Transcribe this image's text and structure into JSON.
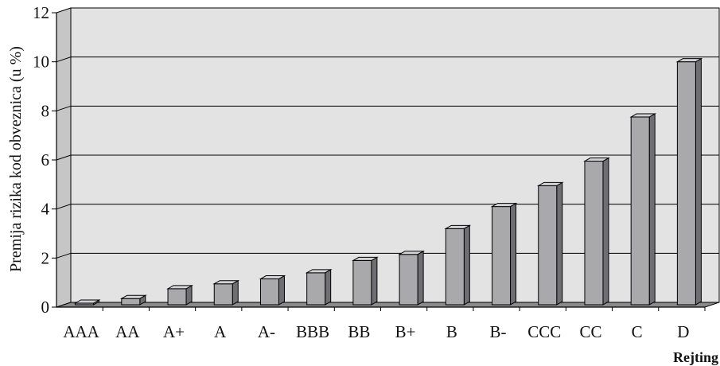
{
  "chart_data": {
    "type": "bar",
    "categories": [
      "AAA",
      "AA",
      "A+",
      "A",
      "A-",
      "BBB",
      "BB",
      "B+",
      "B",
      "B-",
      "CCC",
      "CC",
      "C",
      "D"
    ],
    "values": [
      0.1,
      0.35,
      0.75,
      0.95,
      1.15,
      1.4,
      1.9,
      2.15,
      3.2,
      4.1,
      4.95,
      5.95,
      7.75,
      10.0
    ],
    "xlabel": "Rejting",
    "ylabel": "Premija rizika kod obveznica (u %)",
    "ylim": [
      0,
      12
    ],
    "yticks": [
      "0",
      "2",
      "4",
      "6",
      "8",
      "10",
      "12"
    ],
    "grid": true,
    "legend": "none"
  },
  "colors": {
    "bar_front": "#a9a9ac",
    "bar_side": "#6f6f73",
    "bar_top": "#d3d3d6",
    "wall": "#e3e3e3",
    "left_wall": "#c6c6c6",
    "floor": "#8a8a8a",
    "gridline": "#000000"
  }
}
